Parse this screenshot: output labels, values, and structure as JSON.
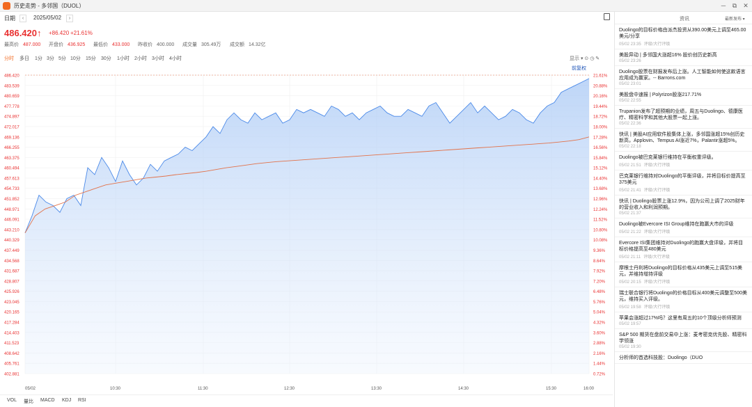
{
  "window": {
    "title": "历史走势 - 多邻国（DUOL）",
    "buttons": [
      "─",
      "⧉",
      "✕"
    ]
  },
  "datebar": {
    "label": "日期",
    "date": "2025/05/02",
    "prev": "‹",
    "next": "›"
  },
  "quote": {
    "price": "486.420",
    "arrow": "↑",
    "change": "+86.420",
    "change_pct": "+21.61%",
    "stats": [
      {
        "label": "最高价",
        "value": "487.000"
      },
      {
        "label": "开盘价",
        "value": "436.925"
      },
      {
        "label": "最低价",
        "value": "433.000"
      },
      {
        "label": "昨收价",
        "value": "400.000"
      },
      {
        "label": "成交量",
        "value": "305.49万"
      },
      {
        "label": "成交额",
        "value": "14.32亿"
      }
    ]
  },
  "periods": [
    "分时",
    "多日",
    "1分",
    "3分",
    "5分",
    "10分",
    "15分",
    "30分",
    "1小时",
    "2小时",
    "3小时",
    "4小时"
  ],
  "chart_tools": "显示 ▾ ⊙ ◷ ✎",
  "adjust": "前复权",
  "chart_data": {
    "type": "area",
    "ylim": [
      400.0,
      487.0
    ],
    "price_ticks": [
      "486.420",
      "483.539",
      "480.659",
      "477.778",
      "474.897",
      "472.017",
      "469.136",
      "466.255",
      "463.375",
      "460.494",
      "457.613",
      "454.733",
      "451.852",
      "448.971",
      "446.091",
      "443.210",
      "440.329",
      "437.449",
      "434.568",
      "431.687",
      "428.807",
      "425.926",
      "423.045",
      "420.165",
      "417.284",
      "414.403",
      "411.523",
      "408.642",
      "405.761",
      "402.881"
    ],
    "pct_ticks": [
      "21.61%",
      "20.88%",
      "20.16%",
      "19.44%",
      "18.72%",
      "18.00%",
      "17.28%",
      "16.56%",
      "15.84%",
      "15.12%",
      "14.40%",
      "13.68%",
      "12.96%",
      "12.24%",
      "11.52%",
      "10.80%",
      "10.08%",
      "9.36%",
      "8.64%",
      "7.92%",
      "7.20%",
      "6.48%",
      "5.76%",
      "5.04%",
      "4.32%",
      "3.60%",
      "2.88%",
      "2.16%",
      "1.44%",
      "0.72%"
    ],
    "x_labels": [
      "05/02",
      "10:30",
      "11:30",
      "12:30",
      "13:30",
      "14:30",
      "15:30",
      "16:00"
    ],
    "series": [
      {
        "values": [
          441,
          446,
          452,
          450,
          449,
          447,
          451,
          452,
          449,
          460,
          458,
          463,
          460,
          456,
          462,
          458,
          455,
          457,
          461,
          459,
          462,
          463,
          464,
          466,
          465,
          467,
          469,
          472,
          470,
          474,
          476,
          474,
          473,
          476,
          474,
          475,
          476,
          473,
          474,
          477,
          476,
          477,
          476,
          475,
          478,
          477,
          475,
          476,
          474,
          476,
          477,
          478,
          476,
          475,
          475,
          477,
          476,
          475,
          478,
          479,
          476,
          473,
          475,
          477,
          479,
          476,
          478,
          476,
          474,
          475,
          477,
          476,
          474,
          473,
          476,
          478,
          479,
          482,
          483,
          484,
          485,
          486
        ]
      },
      {
        "values": [
          441,
          446,
          448,
          449,
          450,
          452,
          453,
          454,
          455,
          455.5,
          456,
          456.5,
          457,
          457.3,
          457.6,
          458,
          458.3,
          458.6,
          459,
          459.5,
          460,
          460.4,
          460.8,
          461.2,
          461.5,
          461.8,
          462,
          462.2,
          462.4,
          462.6,
          462.8,
          463,
          463.2,
          463.4,
          463.6,
          463.8,
          464,
          464.2,
          464.4,
          464.6,
          464.8,
          465,
          465.2,
          465.4,
          465.6,
          465.8,
          466,
          466.2,
          466.4,
          466.6,
          466.8,
          467,
          467.2,
          467.5,
          467.8,
          468.2,
          469
        ]
      }
    ]
  },
  "indicators": [
    "VOL",
    "量比",
    "MACD",
    "KDJ",
    "RSI"
  ],
  "news": {
    "tab": "资讯",
    "sort": "最新发布 ▾",
    "items": [
      {
        "title": "Duolingo的目标价格由派杰投资从390.00美元上调至465.00美元/分享",
        "time": "05/02 23:35",
        "tag": "评级/大行评级"
      },
      {
        "title": "美股异动 | 多邻国大涨超16% 股价创历史新高",
        "time": "05/02 23:26",
        "tag": ""
      },
      {
        "title": "Duolingo股票在财报发布后上涨。人工智能如何使这款语言应用成为赢家。-- Barrons.com",
        "time": "05/02 23:01",
        "tag": ""
      },
      {
        "title": "美股盘中速报 | Polyrizon股涨217.71%",
        "time": "05/02 22:55",
        "tag": ""
      },
      {
        "title": "Trupanion发布了超预期的业绩，周五与Duolingo、德康医疗、精密科学和其他大股票一起上涨。",
        "time": "05/02 22:36",
        "tag": ""
      },
      {
        "title": "快讯 | 美股AI应用软件股集体上涨，多邻国涨超15%创历史新高，Applovin、Tempus AI涨近7%，Palantir涨超5%。",
        "time": "05/02 22:18",
        "tag": ""
      },
      {
        "title": "Duolingo被巴克莱银行维持在平衡权重评级。",
        "time": "05/02 21:51",
        "tag": "评级/大行评级"
      },
      {
        "title": "巴克莱银行维持对Duolingo的平衡评级，并将目标价提高至375美元",
        "time": "05/02 21:41",
        "tag": "评级/大行评级"
      },
      {
        "title": "快讯 | Duolingo股票上涨12.9%，因为公司上调了2025财年的营业收入和利润预期。",
        "time": "05/02 21:37",
        "tag": ""
      },
      {
        "title": "Duolingo被Evercore ISI Group维持在跑赢大市的评级",
        "time": "05/02 21:22",
        "tag": "评级/大行评级"
      },
      {
        "title": "Evercore ISI集团维持对Duolingo的跑赢大盘评级，并将目标价格提高至480美元",
        "time": "05/02 21:11",
        "tag": "评级/大行评级"
      },
      {
        "title": "摩根士丹利将Duolingo的目标价格从435美元上调至515美元，并维持增持评级",
        "time": "05/02 20:15",
        "tag": "评级/大行评级"
      },
      {
        "title": "瑞士联合银行将Duolingo的价格目标从400美元调整至500美元，维持买入评级。",
        "time": "05/02 19:58",
        "tag": "评级/大行评级"
      },
      {
        "title": "苹果会涨超过17%吗？这里有周五的10个顶级分析师预测",
        "time": "05/02 19:57",
        "tag": ""
      },
      {
        "title": "S&P 500 期货在盘前交易中上涨：麦考密克优先股、精密科学领涨",
        "time": "05/02 19:30",
        "tag": ""
      },
      {
        "title": "分析师的首选科技股：Duolingo（DUO",
        "time": "",
        "tag": ""
      }
    ]
  }
}
